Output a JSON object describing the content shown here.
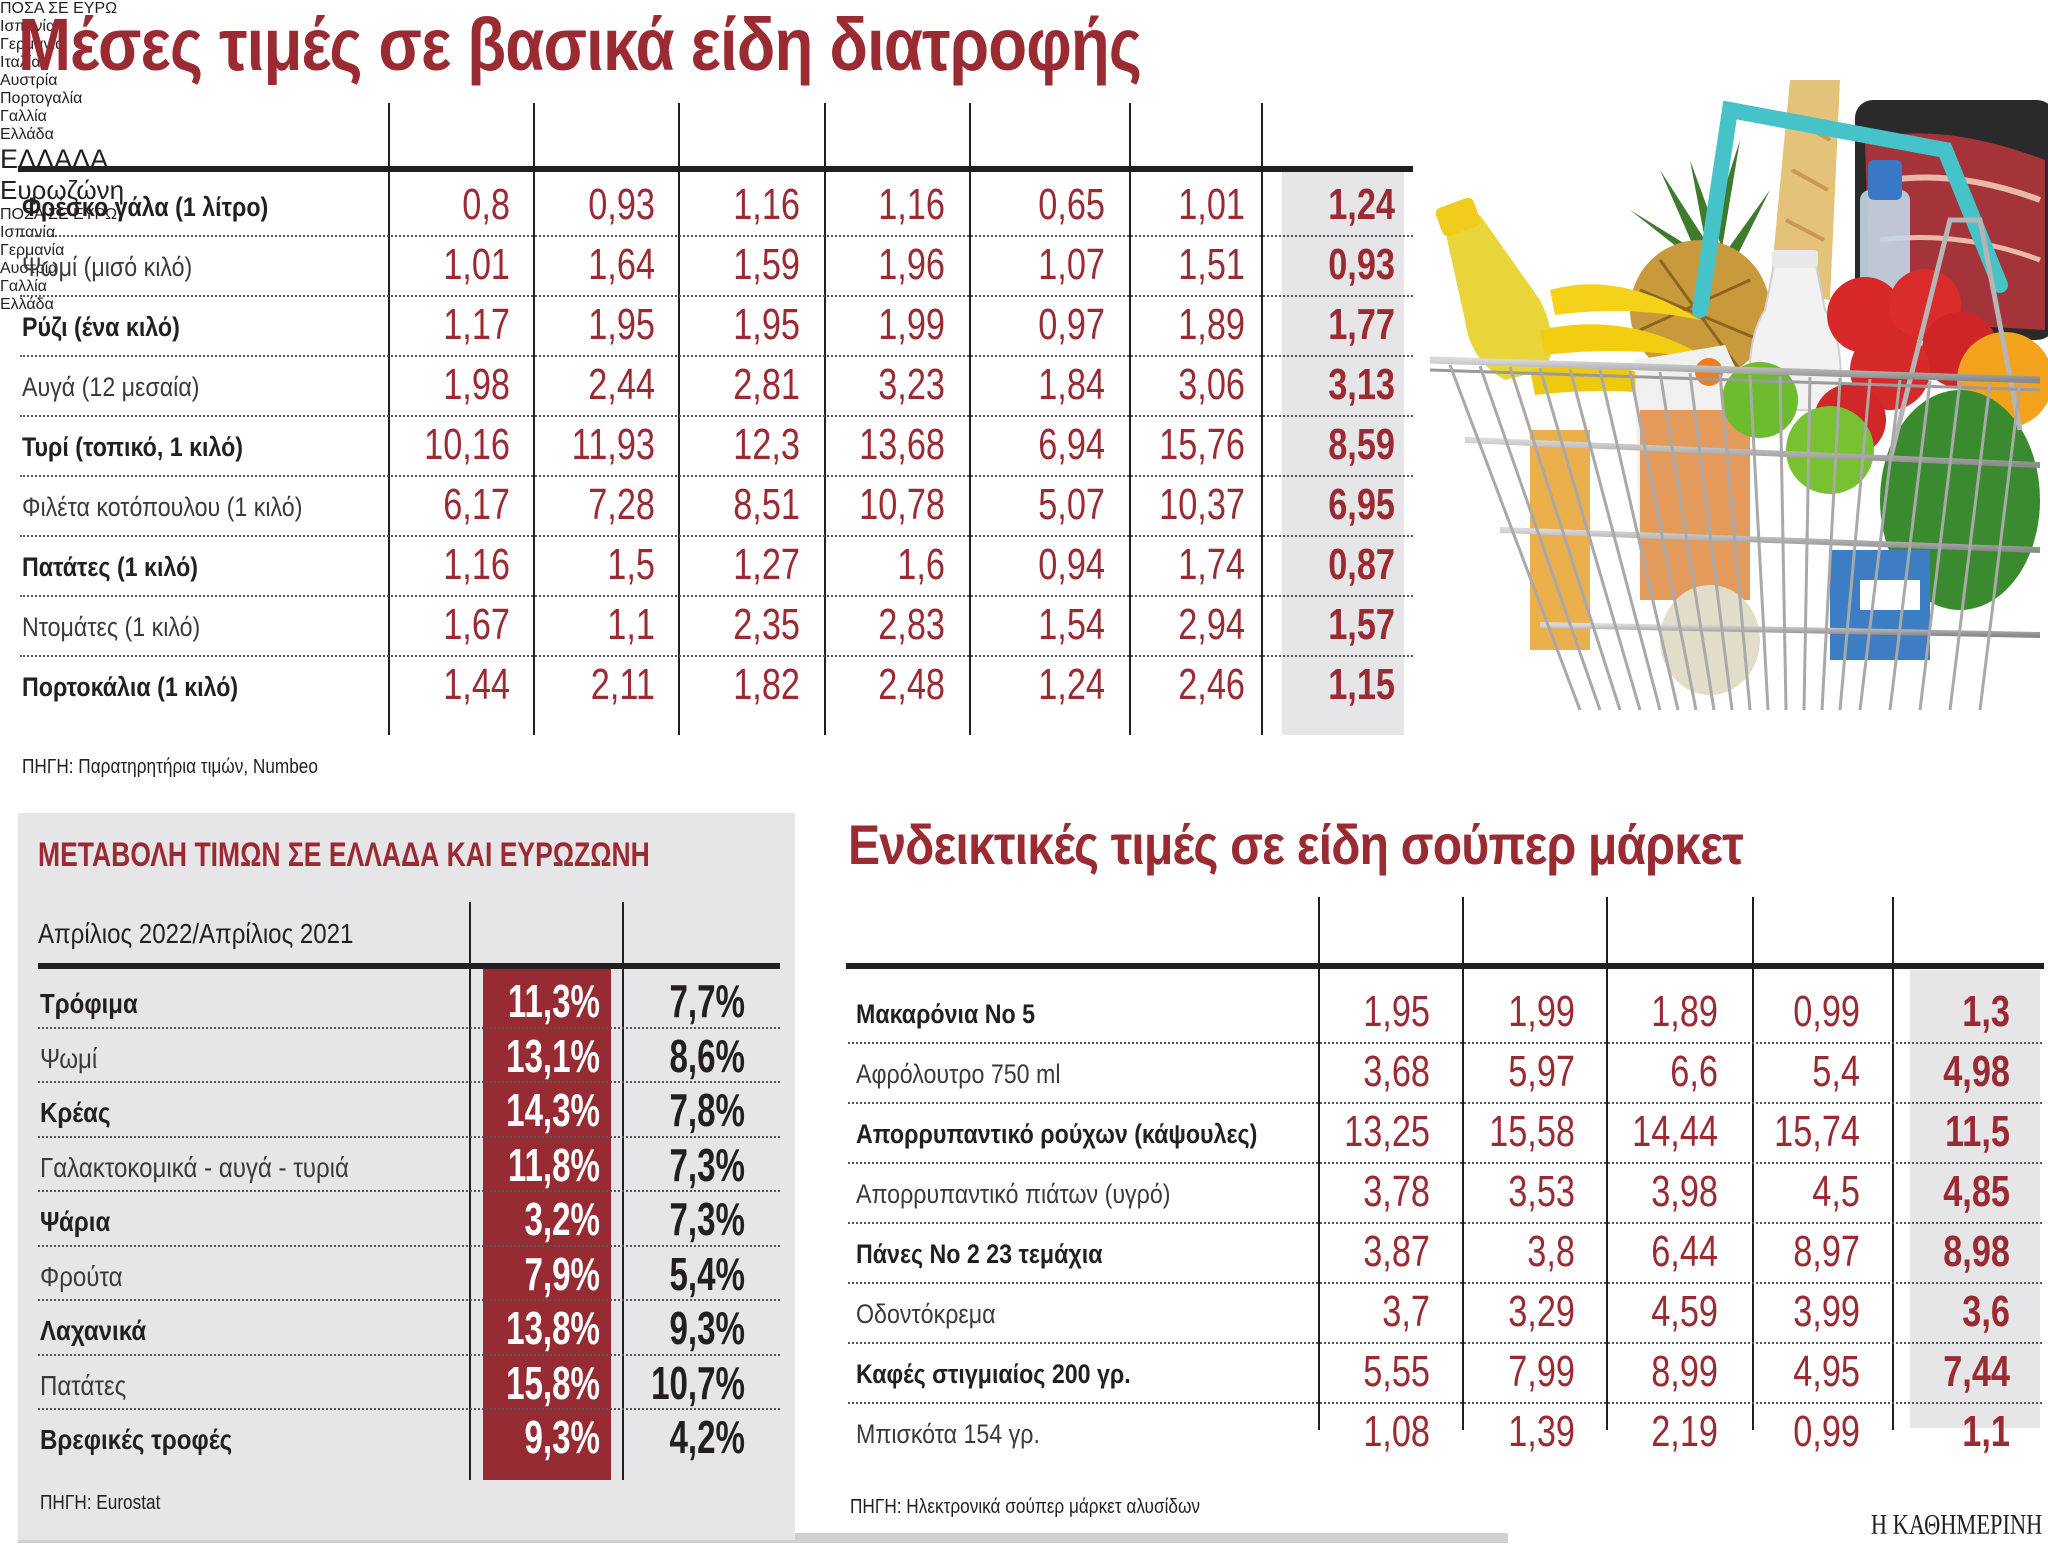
{
  "main_title": "Μέσες τιμές σε βασικά είδη διατροφής",
  "table_food": {
    "unit_label": "ΠΟΣΑ ΣΕ ΕΥΡΩ",
    "columns": [
      "Ισπανία",
      "Γερμανία",
      "Ιταλία",
      "Αυστρία",
      "Πορτογαλία",
      "Γαλλία",
      "Ελλάδα"
    ],
    "rows": [
      {
        "label": "Φρέσκο γάλα (1 λίτρο)",
        "bold": true,
        "values": [
          "0,8",
          "0,93",
          "1,16",
          "1,16",
          "0,65",
          "1,01",
          "1,24"
        ]
      },
      {
        "label": "Ψωμί (μισό κιλό)",
        "bold": false,
        "values": [
          "1,01",
          "1,64",
          "1,59",
          "1,96",
          "1,07",
          "1,51",
          "0,93"
        ]
      },
      {
        "label": "Ρύζι (ένα κιλό)",
        "bold": true,
        "values": [
          "1,17",
          "1,95",
          "1,95",
          "1,99",
          "0,97",
          "1,89",
          "1,77"
        ]
      },
      {
        "label": "Αυγά (12 μεσαία)",
        "bold": false,
        "values": [
          "1,98",
          "2,44",
          "2,81",
          "3,23",
          "1,84",
          "3,06",
          "3,13"
        ]
      },
      {
        "label": "Τυρί (τοπικό, 1 κιλό)",
        "bold": true,
        "values": [
          "10,16",
          "11,93",
          "12,3",
          "13,68",
          "6,94",
          "15,76",
          "8,59"
        ]
      },
      {
        "label": "Φιλέτα κοτόπουλου (1 κιλό)",
        "bold": false,
        "values": [
          "6,17",
          "7,28",
          "8,51",
          "10,78",
          "5,07",
          "10,37",
          "6,95"
        ]
      },
      {
        "label": "Πατάτες (1 κιλό)",
        "bold": true,
        "values": [
          "1,16",
          "1,5",
          "1,27",
          "1,6",
          "0,94",
          "1,74",
          "0,87"
        ]
      },
      {
        "label": "Ντομάτες (1 κιλό)",
        "bold": false,
        "values": [
          "1,67",
          "1,1",
          "2,35",
          "2,83",
          "1,54",
          "2,94",
          "1,57"
        ]
      },
      {
        "label": "Πορτοκάλια (1 κιλό)",
        "bold": true,
        "values": [
          "1,44",
          "2,11",
          "1,82",
          "2,48",
          "1,24",
          "2,46",
          "1,15"
        ]
      }
    ],
    "source": "ΠΗΓΗ: Παρατηρητήρια τιμών, Numbeo"
  },
  "table_change": {
    "title": "ΜΕΤΑΒΟΛΗ ΤΙΜΩΝ ΣΕ ΕΛΛΑΔΑ ΚΑΙ ΕΥΡΩΖΩΝΗ",
    "period_label": "Απρίλιος 2022/Απρίλιος 2021",
    "columns": [
      "ΕΛΛΑΔΑ",
      "Ευρωζώνη"
    ],
    "rows": [
      {
        "label": "Τρόφιμα",
        "bold": true,
        "greece": "11,3%",
        "eurozone": "7,7%"
      },
      {
        "label": "Ψωμί",
        "bold": false,
        "greece": "13,1%",
        "eurozone": "8,6%"
      },
      {
        "label": "Κρέας",
        "bold": true,
        "greece": "14,3%",
        "eurozone": "7,8%"
      },
      {
        "label": "Γαλακτοκομικά - αυγά - τυριά",
        "bold": false,
        "greece": "11,8%",
        "eurozone": "7,3%"
      },
      {
        "label": "Ψάρια",
        "bold": true,
        "greece": "3,2%",
        "eurozone": "7,3%"
      },
      {
        "label": "Φρούτα",
        "bold": false,
        "greece": "7,9%",
        "eurozone": "5,4%"
      },
      {
        "label": "Λαχανικά",
        "bold": true,
        "greece": "13,8%",
        "eurozone": "9,3%"
      },
      {
        "label": "Πατάτες",
        "bold": false,
        "greece": "15,8%",
        "eurozone": "10,7%"
      },
      {
        "label": "Βρεφικές τροφές",
        "bold": true,
        "greece": "9,3%",
        "eurozone": "4,2%"
      }
    ],
    "source": "ΠΗΓΗ: Eurostat"
  },
  "table_supermarket": {
    "title": "Ενδεικτικές τιμές σε είδη σούπερ μάρκετ",
    "unit_label": "ΠΟΣΑ ΣΕ ΕΥΡΩ",
    "columns": [
      "Ισπανία",
      "Γερμανία",
      "Αυστρία",
      "Γαλλία",
      "Ελλάδα"
    ],
    "rows": [
      {
        "label": "Μακαρόνια Νο 5",
        "bold": true,
        "values": [
          "1,95",
          "1,99",
          "1,89",
          "0,99",
          "1,3"
        ]
      },
      {
        "label": "Αφρόλουτρο 750 ml",
        "bold": false,
        "values": [
          "3,68",
          "5,97",
          "6,6",
          "5,4",
          "4,98"
        ]
      },
      {
        "label": "Απορρυπαντικό ρούχων (κάψουλες)",
        "bold": true,
        "values": [
          "13,25",
          "15,58",
          "14,44",
          "15,74",
          "11,5"
        ]
      },
      {
        "label": "Απορρυπαντικό πιάτων (υγρό)",
        "bold": false,
        "values": [
          "3,78",
          "3,53",
          "3,98",
          "4,5",
          "4,85"
        ]
      },
      {
        "label": "Πάνες Νο 2 23 τεμάχια",
        "bold": true,
        "values": [
          "3,87",
          "3,8",
          "6,44",
          "8,97",
          "8,98"
        ]
      },
      {
        "label": "Οδοντόκρεμα",
        "bold": false,
        "values": [
          "3,7",
          "3,29",
          "4,59",
          "3,99",
          "3,6"
        ]
      },
      {
        "label": "Καφές στιγμιαίος 200 γρ.",
        "bold": true,
        "values": [
          "5,55",
          "7,99",
          "8,99",
          "4,95",
          "7,44"
        ]
      },
      {
        "label": "Μπισκότα 154 γρ.",
        "bold": false,
        "values": [
          "1,08",
          "1,39",
          "2,19",
          "0,99",
          "1,1"
        ]
      }
    ],
    "source": "ΠΗΓΗ: Ηλεκτρονικά σούπερ μάρκετ αλυσίδων"
  },
  "illustration": "shopping-basket-with-groceries",
  "brand": "Η ΚΑΘΗΜΕΡΙΝΗ",
  "colors": {
    "accent_red": "#9a2b32",
    "highlight_red": "#962b33",
    "panel_gray": "#e6e6e8",
    "text_dark": "#231f20"
  }
}
